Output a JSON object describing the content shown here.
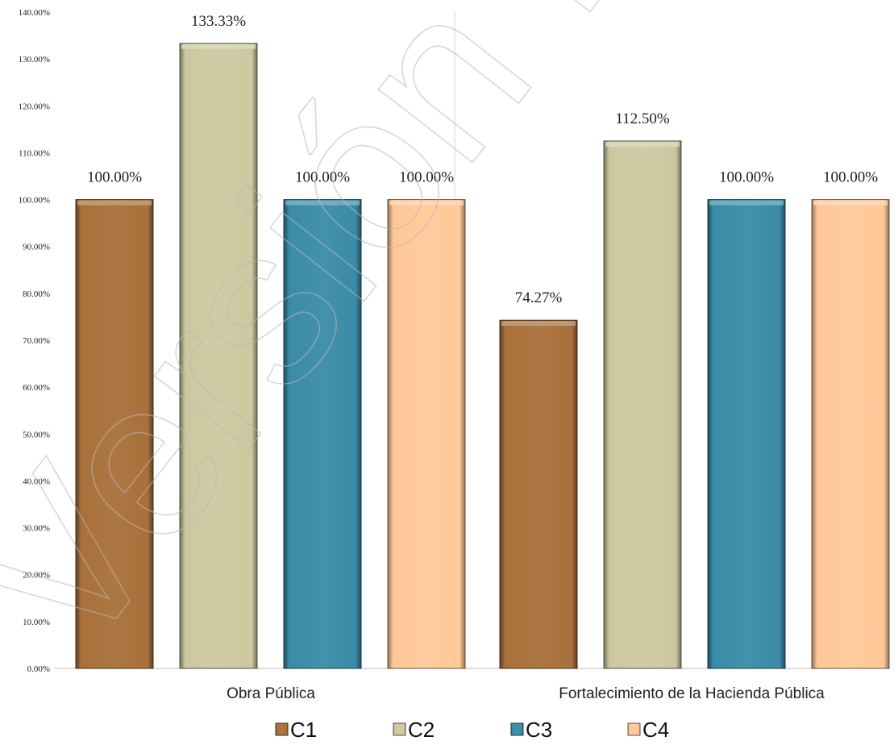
{
  "chart_data": {
    "type": "bar",
    "categories": [
      "Obra Pública",
      "Fortalecimiento de la Hacienda Pública"
    ],
    "series": [
      {
        "name": "C1",
        "values": [
          100.0,
          74.27
        ],
        "color": "#a8703a"
      },
      {
        "name": "C2",
        "values": [
          133.33,
          112.5
        ],
        "color": "#cdc8a0"
      },
      {
        "name": "C3",
        "values": [
          100.0,
          100.0
        ],
        "color": "#3a8ba8"
      },
      {
        "name": "C4",
        "values": [
          100.0,
          100.0
        ],
        "color": "#ffc898"
      }
    ],
    "data_labels": [
      [
        "100.00%",
        "74.27%"
      ],
      [
        "133.33%",
        "112.50%"
      ],
      [
        "100.00%",
        "100.00%"
      ],
      [
        "100.00%",
        "100.00%"
      ]
    ],
    "yticks": [
      "0.00%",
      "10.00%",
      "20.00%",
      "30.00%",
      "40.00%",
      "50.00%",
      "60.00%",
      "70.00%",
      "80.00%",
      "90.00%",
      "100.00%",
      "110.00%",
      "120.00%",
      "130.00%",
      "140.00%"
    ],
    "ylim": [
      0,
      140
    ],
    "legend_position": "bottom",
    "grid": false
  },
  "watermark": "Versión Pública"
}
